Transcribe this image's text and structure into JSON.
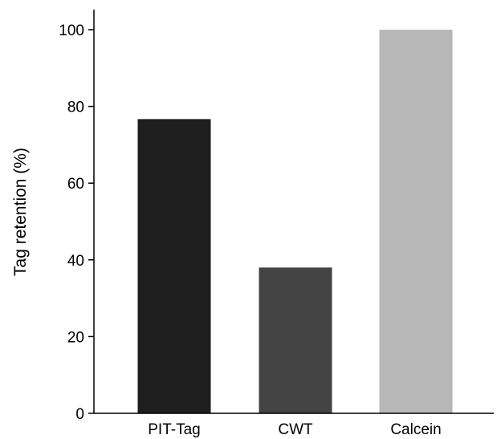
{
  "chart_data": {
    "type": "bar",
    "title": "",
    "xlabel": "",
    "ylabel": "Tag retention (%)",
    "categories": [
      "PIT-Tag",
      "CWT",
      "Calcein"
    ],
    "values": [
      76.7,
      38,
      100
    ],
    "colors": [
      "#1e1e1e",
      "#444444",
      "#b7b7b7"
    ],
    "ylim": [
      0,
      100
    ],
    "yticks": [
      0,
      20,
      40,
      60,
      80,
      100
    ],
    "ytick_labels": [
      "0",
      "20",
      "40",
      "60",
      "80",
      "100"
    ],
    "grid": false,
    "legend": "none"
  }
}
